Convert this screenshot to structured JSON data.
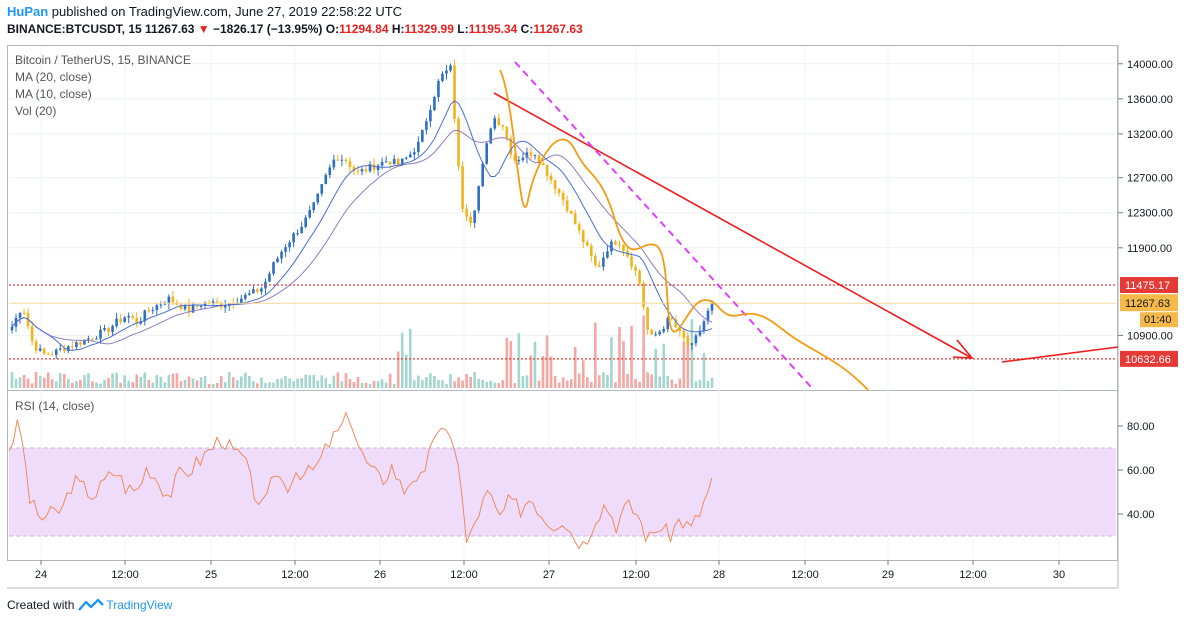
{
  "header": {
    "author": "HuPan",
    "published": " published on TradingView.com, June 27, 2019 22:58:22 UTC",
    "symbol": "BINANCE:BTCUSDT, 15",
    "last": "11267.63",
    "change_arrow": "▼",
    "change": "−1826.17 (−13.95%)",
    "o_label": "O:",
    "o_value": "11294.84",
    "h_label": "H:",
    "h_value": "11329.99",
    "l_label": "L:",
    "l_value": "11195.34",
    "c_label": "C:",
    "c_value": "11267.63"
  },
  "legend": {
    "title": "Bitcoin / TetherUS, 15, BINANCE",
    "ma20": "MA (20, close)",
    "ma10": "MA (10, close)",
    "vol": "Vol (20)",
    "rsi": "RSI (14, close)"
  },
  "footer": {
    "created": "Created with",
    "brand": "TradingView"
  },
  "colors": {
    "up": "#2d6fc4",
    "down": "#f2b31a",
    "ma20": "#8e7cc3",
    "ma10": "#4a6fd0",
    "trend": "#ef1c1c",
    "dash": "#e040fb",
    "projection": "#f39c12",
    "rsi": "#f08a5d",
    "rsi_band": "#efdcfb",
    "level": "#e53935",
    "vol_up": "#a3d6cf",
    "vol_down": "#f4a7a3"
  },
  "chart_data": [
    {
      "type": "candlestick",
      "name": "price",
      "y_ticks": [
        14000,
        13600,
        13200,
        12700,
        12300,
        11900,
        10900
      ],
      "ylim": [
        10300,
        14180
      ],
      "x_ticks": [
        "24",
        "12:00",
        "25",
        "12:00",
        "26",
        "12:00",
        "27",
        "12:00",
        "28",
        "12:00",
        "29",
        "12:00",
        "30"
      ],
      "levels": [
        {
          "value": 11475.17,
          "label": "11475.17"
        },
        {
          "value": 10632.66,
          "label": "10632.66"
        }
      ],
      "last_price": {
        "value": 11267.63,
        "label": "11267.63",
        "countdown": "01:40"
      },
      "path": [
        11000,
        11250,
        10800,
        10680,
        10700,
        10760,
        10800,
        10850,
        10900,
        10950,
        11050,
        11130,
        11050,
        11180,
        11250,
        11320,
        11250,
        11180,
        11260,
        11270,
        11250,
        11280,
        11330,
        11380,
        11450,
        11700,
        11900,
        12050,
        12200,
        12400,
        12700,
        12950,
        12900,
        12750,
        12800,
        12850,
        12900,
        12850,
        12950,
        13100,
        13500,
        13850,
        13950,
        12400,
        12200,
        12800,
        13400,
        13300,
        12900,
        12950,
        13000,
        12800,
        12600,
        12400,
        12150,
        11900,
        11650,
        11900,
        12000,
        11800,
        11550,
        10850,
        10950,
        11100,
        10900,
        10750,
        11000,
        11267
      ]
    },
    {
      "type": "line",
      "name": "rsi",
      "y_ticks": [
        80,
        60,
        40
      ],
      "ylim": [
        20,
        95
      ],
      "band": [
        30,
        70
      ],
      "path": [
        70,
        82,
        45,
        38,
        40,
        42,
        55,
        52,
        48,
        55,
        60,
        52,
        50,
        62,
        55,
        48,
        58,
        60,
        65,
        70,
        75,
        68,
        66,
        50,
        42,
        60,
        52,
        60,
        58,
        62,
        72,
        78,
        85,
        68,
        60,
        55,
        62,
        50,
        58,
        55,
        80,
        75,
        72,
        25,
        40,
        50,
        38,
        46,
        42,
        48,
        40,
        35,
        38,
        30,
        26,
        38,
        45,
        35,
        44,
        40,
        28,
        35,
        30,
        38,
        33,
        42,
        55
      ]
    }
  ]
}
